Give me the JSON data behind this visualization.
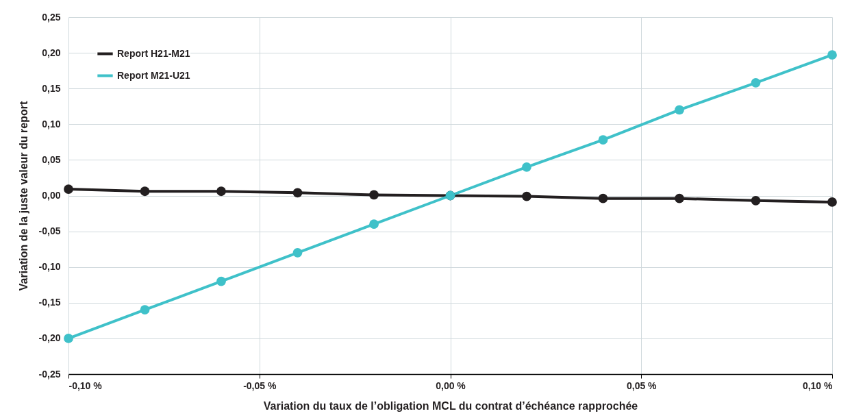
{
  "chart_data": {
    "type": "line",
    "xlabel": "Variation du taux de l’obligation MCL du contrat d’échéance rapprochée",
    "ylabel": "Variation de la juste valeur du report",
    "x": [
      -0.1,
      -0.08,
      -0.06,
      -0.04,
      -0.02,
      0,
      0.02,
      0.04,
      0.06,
      0.08,
      0.1
    ],
    "series": [
      {
        "name": "Report H21-M21",
        "color": "#231f20",
        "values": [
          0.009,
          0.006,
          0.006,
          0.004,
          0.001,
          0,
          -0.001,
          -0.004,
          -0.004,
          -0.007,
          -0.009
        ]
      },
      {
        "name": "Report M21-U21",
        "color": "#3fc1c9",
        "values": [
          -0.2,
          -0.16,
          -0.12,
          -0.08,
          -0.04,
          0,
          0.04,
          0.078,
          0.12,
          0.158,
          0.197
        ]
      }
    ],
    "xlim": [
      -0.1,
      0.1
    ],
    "xticks": [
      {
        "value": -0.1,
        "label": "-0,10 %"
      },
      {
        "value": -0.05,
        "label": "-0,05 %"
      },
      {
        "value": 0,
        "label": "0,00 %"
      },
      {
        "value": 0.05,
        "label": "0,05 %"
      },
      {
        "value": 0.1,
        "label": "0,10 %"
      }
    ],
    "ylim": [
      -0.25,
      0.25
    ],
    "yticks": [
      {
        "value": -0.25,
        "label": "-0,25"
      },
      {
        "value": -0.2,
        "label": "-0,20"
      },
      {
        "value": -0.15,
        "label": "-0,15"
      },
      {
        "value": -0.1,
        "label": "-0,10"
      },
      {
        "value": -0.05,
        "label": "-0,05"
      },
      {
        "value": 0,
        "label": "0,00"
      },
      {
        "value": 0.05,
        "label": "0,05"
      },
      {
        "value": 0.1,
        "label": "0,10"
      },
      {
        "value": 0.15,
        "label": "0,15"
      },
      {
        "value": 0.2,
        "label": "0,20"
      },
      {
        "value": 0.25,
        "label": "0,25"
      }
    ],
    "grid": true,
    "legend": "top left",
    "marker": "circle",
    "line_style": "solid"
  }
}
